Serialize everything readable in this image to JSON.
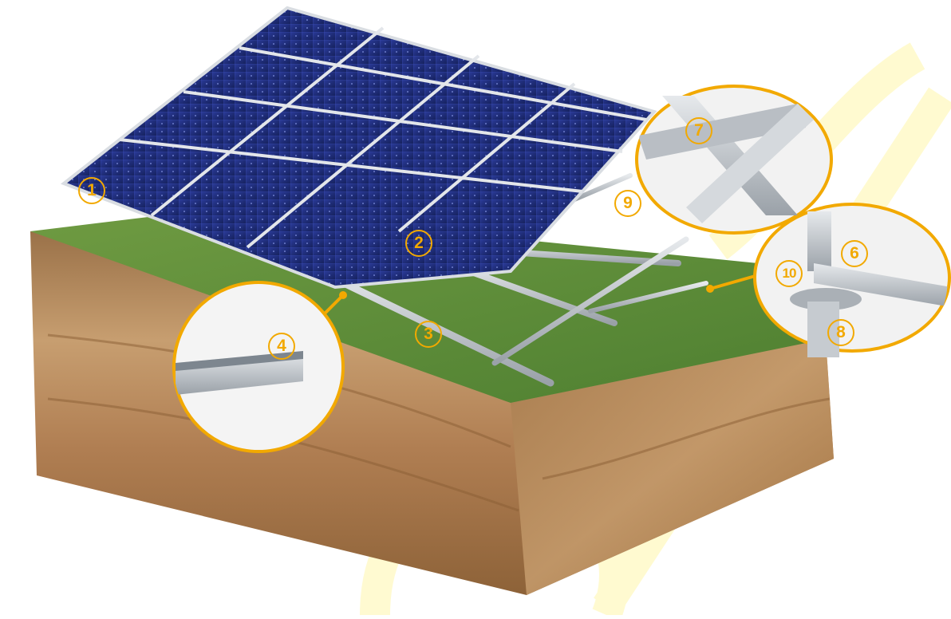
{
  "callouts": [
    {
      "id": "1",
      "label": "1"
    },
    {
      "id": "2",
      "label": "2"
    },
    {
      "id": "3",
      "label": "3"
    },
    {
      "id": "4",
      "label": "4"
    },
    {
      "id": "6",
      "label": "6"
    },
    {
      "id": "7",
      "label": "7"
    },
    {
      "id": "8",
      "label": "8"
    },
    {
      "id": "9",
      "label": "9"
    },
    {
      "id": "10",
      "label": "10"
    }
  ],
  "colors": {
    "accent": "#f2a900",
    "panel": "#1f2d7a",
    "grass": "#5f8f3a",
    "soil": "#b98a5a",
    "aluminium": "#c9ced4"
  }
}
